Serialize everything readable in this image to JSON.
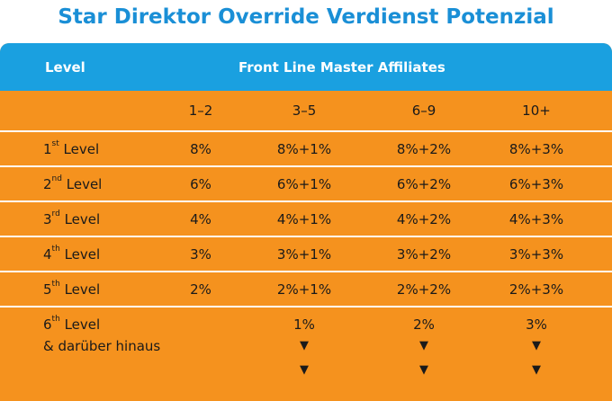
{
  "title": "Star Direktor Override Verdienst Potenzial",
  "header": {
    "level": "Level",
    "front_line": "Front Line Master Affiliates"
  },
  "tiers": [
    "1–2",
    "3–5",
    "6–9",
    "10+"
  ],
  "rows": [
    {
      "num": "1",
      "sup": "st",
      "word": "Level",
      "values": [
        "8%",
        "8%+1%",
        "8%+2%",
        "8%+3%"
      ]
    },
    {
      "num": "2",
      "sup": "nd",
      "word": "Level",
      "values": [
        "6%",
        "6%+1%",
        "6%+2%",
        "6%+3%"
      ]
    },
    {
      "num": "3",
      "sup": "rd",
      "word": "Level",
      "values": [
        "4%",
        "4%+1%",
        "4%+2%",
        "4%+3%"
      ]
    },
    {
      "num": "4",
      "sup": "th",
      "word": "Level",
      "values": [
        "3%",
        "3%+1%",
        "3%+2%",
        "3%+3%"
      ]
    },
    {
      "num": "5",
      "sup": "th",
      "word": "Level",
      "values": [
        "2%",
        "2%+1%",
        "2%+2%",
        "2%+3%"
      ]
    }
  ],
  "last_row": {
    "num": "6",
    "sup": "th",
    "word": "Level",
    "line2": "& darüber hinaus",
    "values": [
      "1%",
      "2%",
      "3%"
    ],
    "arrow_glyph": "▼"
  },
  "colors": {
    "title": "#1a8fd6",
    "header_bg": "#1aa0e0",
    "table_bg": "#f5921e",
    "divider": "#ffffff"
  }
}
